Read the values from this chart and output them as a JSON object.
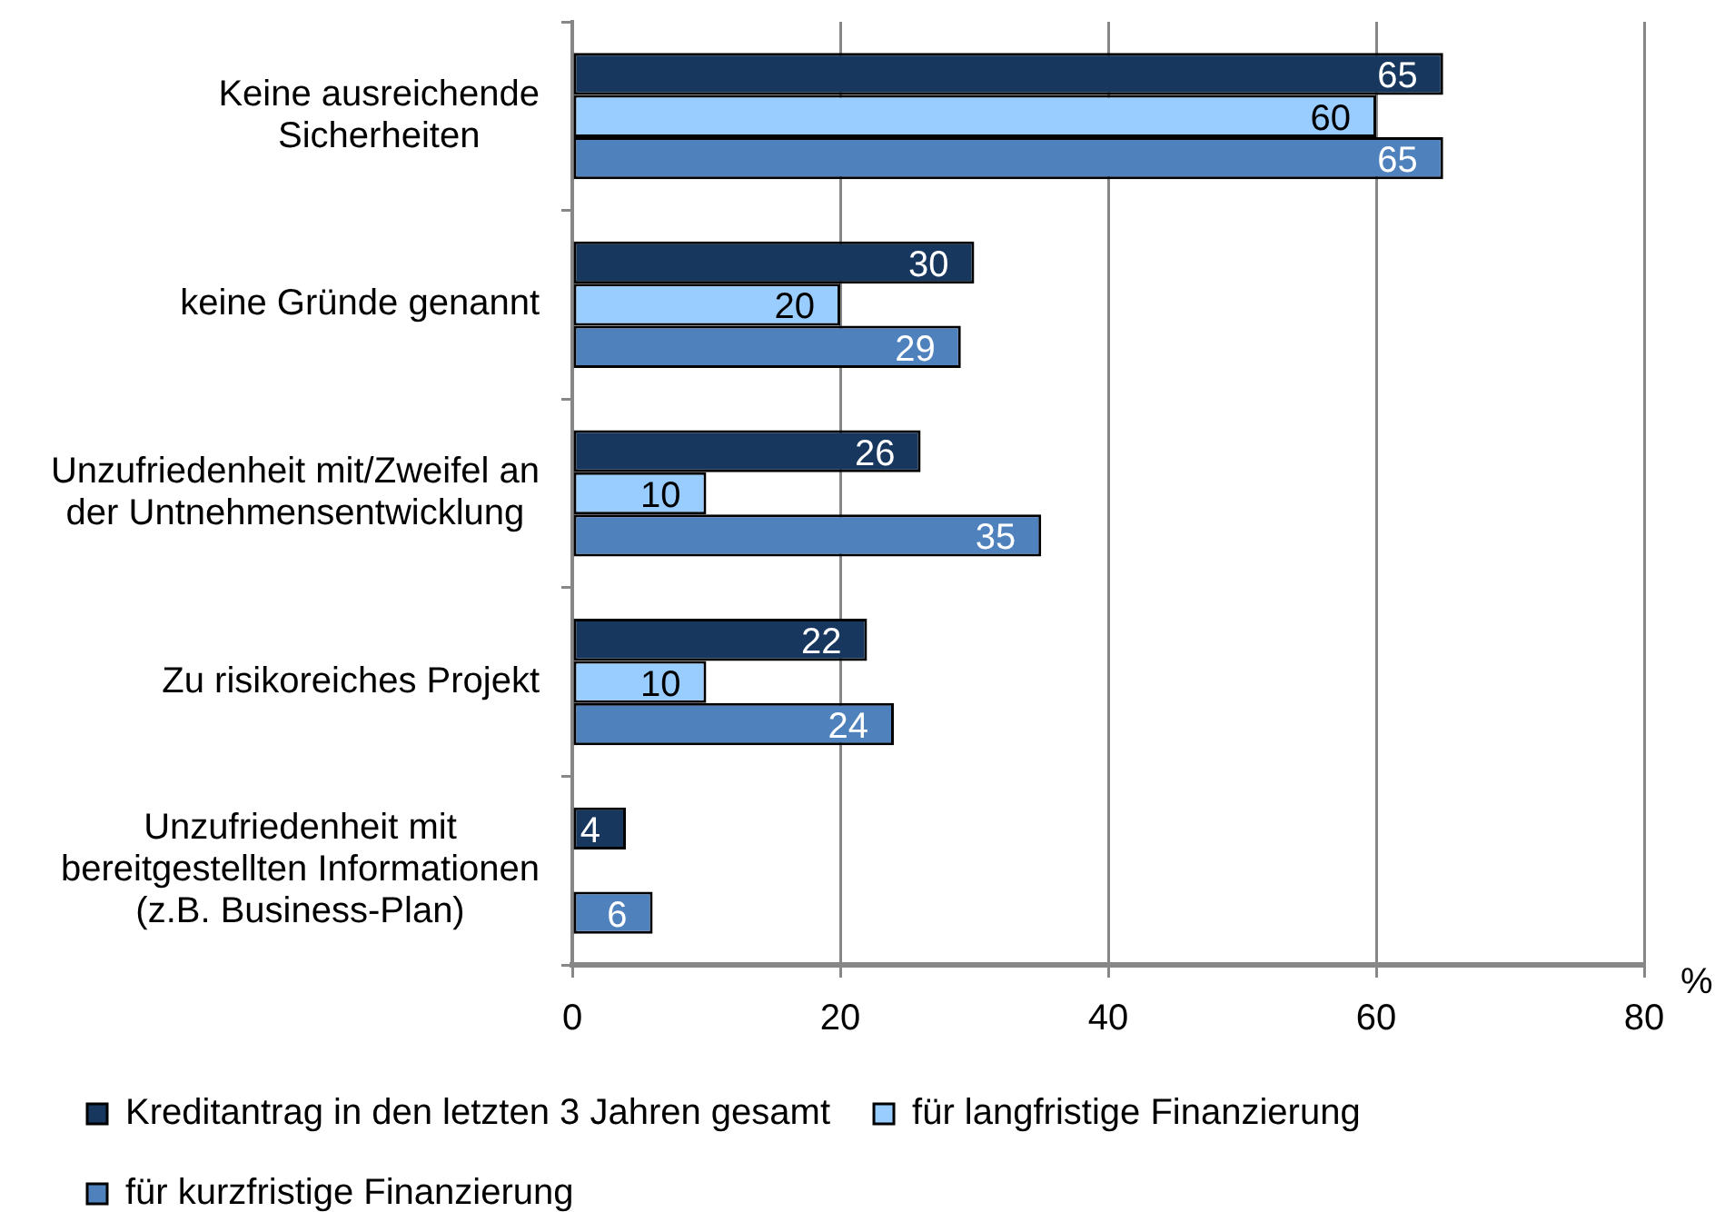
{
  "chart_data": {
    "type": "bar",
    "orientation": "horizontal",
    "xlabel": "%",
    "categories": [
      "Keine ausreichende\nSicherheiten",
      "keine Gründe genannt",
      "Unzufriedenheit mit/Zweifel an\nder Untnehmensentwicklung",
      "Zu risikoreiches Projekt",
      "Unzufriedenheit mit\nbereitgestellten Informationen\n(z.B. Business-Plan)"
    ],
    "series": [
      {
        "name": "Kreditantrag in den letzten 3 Jahren gesamt",
        "color": "#17375e",
        "values": [
          65,
          30,
          26,
          22,
          4
        ]
      },
      {
        "name": "für langfristige Finanzierung",
        "color": "#99ccff",
        "values": [
          60,
          20,
          10,
          10,
          null
        ]
      },
      {
        "name": "für kurzfristige Finanzierung",
        "color": "#4f81bd",
        "values": [
          65,
          29,
          35,
          24,
          6
        ]
      }
    ],
    "xlim": [
      0,
      80
    ],
    "xticks": [
      0,
      20,
      40,
      60,
      80
    ],
    "grid": "x",
    "legend": "bottom left",
    "data_labels": true
  }
}
